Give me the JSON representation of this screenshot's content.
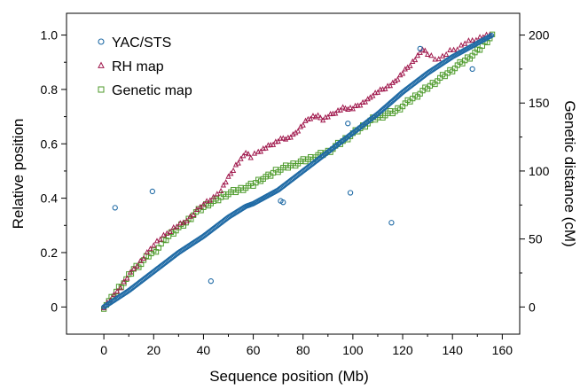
{
  "chart_data": {
    "type": "scatter",
    "title": "",
    "xlabel": "Sequence position (Mb)",
    "ylabel": "Relative position",
    "y2label": "Genetic distance (cM)",
    "xlim": [
      -15,
      167
    ],
    "ylim": [
      -0.1,
      1.08
    ],
    "y2lim": [
      -20,
      216
    ],
    "xticks": [
      0,
      20,
      40,
      60,
      80,
      100,
      120,
      140,
      160
    ],
    "xticks_minor": [
      10,
      30,
      50,
      70,
      90,
      110,
      130,
      150
    ],
    "yticks": [
      0,
      0.2,
      0.4,
      0.6,
      0.8,
      1.0
    ],
    "yticks_labels": [
      "0",
      "0.2",
      "0.4",
      "0.6",
      "0.8",
      "1.0"
    ],
    "yticks_minor": [
      0.1,
      0.3,
      0.5,
      0.7,
      0.9
    ],
    "y2ticks": [
      0,
      50,
      100,
      150,
      200
    ],
    "y2ticks_minor": [
      25,
      75,
      125,
      175
    ],
    "legend_position": "top-left",
    "grid": false,
    "series": [
      {
        "name": "YAC/STS",
        "marker": "circle",
        "color": "#1f6aa5",
        "axis": "left",
        "curve": [
          [
            0,
            0
          ],
          [
            10,
            0.06
          ],
          [
            20,
            0.13
          ],
          [
            30,
            0.2
          ],
          [
            40,
            0.26
          ],
          [
            50,
            0.33
          ],
          [
            57,
            0.37
          ],
          [
            60,
            0.38
          ],
          [
            70,
            0.43
          ],
          [
            80,
            0.5
          ],
          [
            90,
            0.57
          ],
          [
            100,
            0.64
          ],
          [
            110,
            0.71
          ],
          [
            120,
            0.79
          ],
          [
            130,
            0.86
          ],
          [
            140,
            0.92
          ],
          [
            150,
            0.97
          ],
          [
            156,
            1.0
          ]
        ],
        "outliers": [
          [
            4.5,
            0.365
          ],
          [
            19.5,
            0.425
          ],
          [
            43,
            0.095
          ],
          [
            71,
            0.39
          ],
          [
            72,
            0.385
          ],
          [
            98,
            0.675
          ],
          [
            99,
            0.42
          ],
          [
            115.5,
            0.31
          ],
          [
            127,
            0.95
          ],
          [
            148,
            0.875
          ]
        ]
      },
      {
        "name": "RH map",
        "marker": "triangle",
        "color": "#a0194d",
        "axis": "left",
        "points": [
          [
            0,
            0
          ],
          [
            4,
            0.04
          ],
          [
            8,
            0.09
          ],
          [
            12,
            0.14
          ],
          [
            16,
            0.18
          ],
          [
            20,
            0.23
          ],
          [
            24,
            0.26
          ],
          [
            28,
            0.29
          ],
          [
            32,
            0.31
          ],
          [
            36,
            0.34
          ],
          [
            40,
            0.38
          ],
          [
            44,
            0.4
          ],
          [
            47,
            0.43
          ],
          [
            49,
            0.46
          ],
          [
            51,
            0.49
          ],
          [
            53,
            0.52
          ],
          [
            55,
            0.54
          ],
          [
            57,
            0.57
          ],
          [
            59,
            0.55
          ],
          [
            62,
            0.57
          ],
          [
            64,
            0.58
          ],
          [
            66,
            0.59
          ],
          [
            68,
            0.6
          ],
          [
            70,
            0.61
          ],
          [
            72,
            0.62
          ],
          [
            74,
            0.62
          ],
          [
            76,
            0.63
          ],
          [
            78,
            0.65
          ],
          [
            80,
            0.67
          ],
          [
            82,
            0.69
          ],
          [
            84,
            0.7
          ],
          [
            86,
            0.7
          ],
          [
            88,
            0.69
          ],
          [
            90,
            0.7
          ],
          [
            92,
            0.71
          ],
          [
            94,
            0.72
          ],
          [
            96,
            0.73
          ],
          [
            98,
            0.73
          ],
          [
            100,
            0.73
          ],
          [
            102,
            0.74
          ],
          [
            104,
            0.75
          ],
          [
            106,
            0.76
          ],
          [
            108,
            0.78
          ],
          [
            110,
            0.79
          ],
          [
            112,
            0.8
          ],
          [
            114,
            0.81
          ],
          [
            116,
            0.82
          ],
          [
            118,
            0.84
          ],
          [
            120,
            0.86
          ],
          [
            122,
            0.88
          ],
          [
            124,
            0.9
          ],
          [
            126,
            0.92
          ],
          [
            128,
            0.95
          ],
          [
            130,
            0.93
          ],
          [
            133,
            0.91
          ],
          [
            136,
            0.92
          ],
          [
            139,
            0.94
          ],
          [
            142,
            0.95
          ],
          [
            145,
            0.97
          ],
          [
            148,
            0.98
          ],
          [
            151,
            0.99
          ],
          [
            155,
            1.0
          ]
        ]
      },
      {
        "name": "Genetic map",
        "marker": "square",
        "color": "#4c9a2a",
        "axis": "left",
        "points": [
          [
            0,
            0
          ],
          [
            3,
            0.03
          ],
          [
            6,
            0.07
          ],
          [
            9,
            0.1
          ],
          [
            12,
            0.14
          ],
          [
            15,
            0.16
          ],
          [
            18,
            0.19
          ],
          [
            21,
            0.21
          ],
          [
            24,
            0.24
          ],
          [
            27,
            0.27
          ],
          [
            30,
            0.29
          ],
          [
            33,
            0.31
          ],
          [
            36,
            0.34
          ],
          [
            39,
            0.36
          ],
          [
            42,
            0.38
          ],
          [
            45,
            0.39
          ],
          [
            48,
            0.41
          ],
          [
            51,
            0.42
          ],
          [
            54,
            0.43
          ],
          [
            57,
            0.44
          ],
          [
            60,
            0.45
          ],
          [
            63,
            0.47
          ],
          [
            66,
            0.48
          ],
          [
            69,
            0.5
          ],
          [
            72,
            0.51
          ],
          [
            75,
            0.52
          ],
          [
            78,
            0.53
          ],
          [
            81,
            0.54
          ],
          [
            84,
            0.55
          ],
          [
            87,
            0.56
          ],
          [
            90,
            0.57
          ],
          [
            93,
            0.59
          ],
          [
            96,
            0.61
          ],
          [
            99,
            0.63
          ],
          [
            102,
            0.65
          ],
          [
            105,
            0.67
          ],
          [
            108,
            0.69
          ],
          [
            111,
            0.7
          ],
          [
            114,
            0.71
          ],
          [
            117,
            0.72
          ],
          [
            120,
            0.74
          ],
          [
            123,
            0.76
          ],
          [
            126,
            0.78
          ],
          [
            129,
            0.8
          ],
          [
            132,
            0.82
          ],
          [
            135,
            0.84
          ],
          [
            138,
            0.86
          ],
          [
            141,
            0.88
          ],
          [
            144,
            0.9
          ],
          [
            147,
            0.92
          ],
          [
            150,
            0.94
          ],
          [
            152,
            0.96
          ],
          [
            154,
            0.98
          ],
          [
            156,
            1.0
          ]
        ]
      }
    ]
  }
}
